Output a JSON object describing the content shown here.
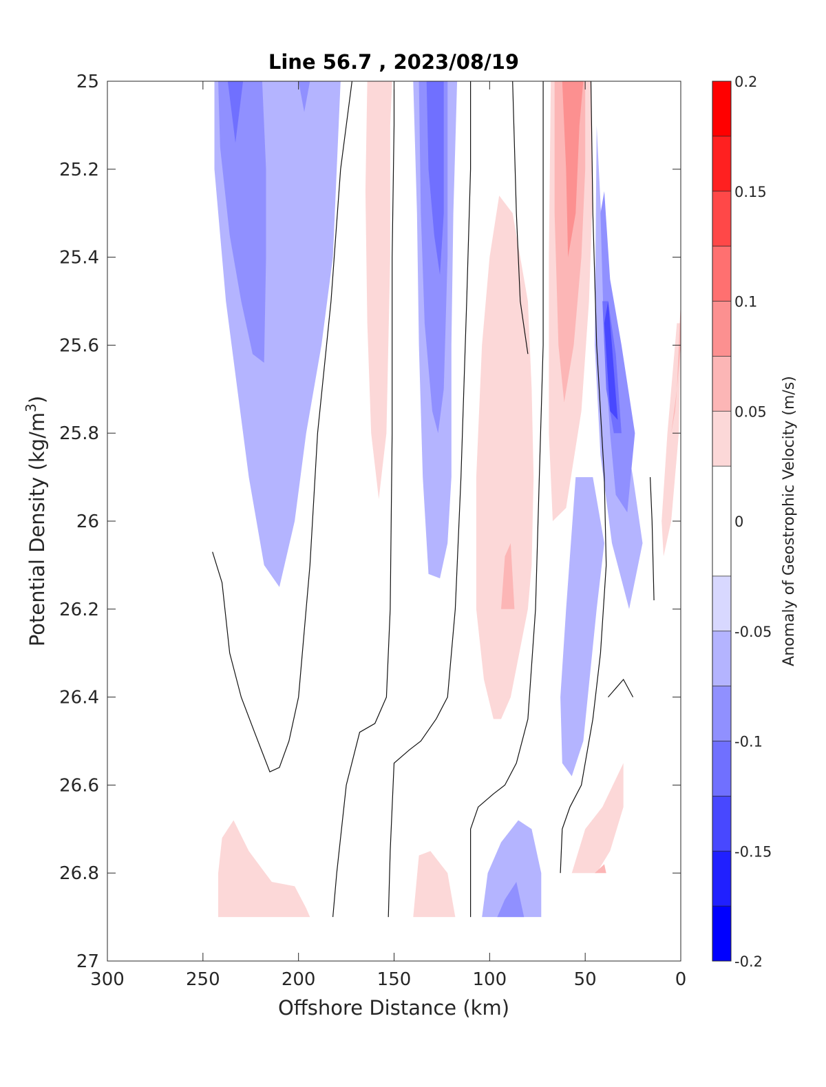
{
  "chart_data": {
    "type": "filled-contour",
    "title": "Line 56.7 , 2023/08/19",
    "xlabel": "Offshore Distance (km)",
    "ylabel_main": "Potential Density (kg/m",
    "ylabel_sup": "3",
    "ylabel_close": ")",
    "xlim": [
      300,
      0
    ],
    "x_reversed": true,
    "ylim": [
      25,
      27
    ],
    "y_reversed": true,
    "x_ticks": [
      {
        "value": 300,
        "label": "300"
      },
      {
        "value": 250,
        "label": "250"
      },
      {
        "value": 200,
        "label": "200"
      },
      {
        "value": 150,
        "label": "150"
      },
      {
        "value": 100,
        "label": "100"
      },
      {
        "value": 50,
        "label": "50"
      },
      {
        "value": 0,
        "label": "0"
      }
    ],
    "y_ticks": [
      {
        "value": 25,
        "label": "25"
      },
      {
        "value": 25.2,
        "label": "25.2"
      },
      {
        "value": 25.4,
        "label": "25.4"
      },
      {
        "value": 25.6,
        "label": "25.6"
      },
      {
        "value": 25.8,
        "label": "25.8"
      },
      {
        "value": 26,
        "label": "26"
      },
      {
        "value": 26.2,
        "label": "26.2"
      },
      {
        "value": 26.4,
        "label": "26.4"
      },
      {
        "value": 26.6,
        "label": "26.6"
      },
      {
        "value": 26.8,
        "label": "26.8"
      },
      {
        "value": 27,
        "label": "27"
      }
    ],
    "colorbar": {
      "label": "Anomaly of Geostrophic Velocity (m/s)",
      "range": [
        -0.2,
        0.2
      ],
      "levels": [
        -0.2,
        -0.175,
        -0.15,
        -0.125,
        -0.1,
        -0.075,
        -0.05,
        -0.025,
        0.025,
        0.05,
        0.075,
        0.1,
        0.125,
        0.15,
        0.175,
        0.2
      ],
      "colors": [
        "#0000ff",
        "#2020ff",
        "#4848ff",
        "#7070ff",
        "#9090ff",
        "#b4b4ff",
        "#d8d8ff",
        "#ffffff",
        "#fcd8d8",
        "#fcb6b6",
        "#fc9090",
        "#ff7070",
        "#ff4848",
        "#ff2020",
        "#ff0000"
      ],
      "ticks": [
        {
          "value": 0.2,
          "label": "0.2"
        },
        {
          "value": 0.15,
          "label": "0.15"
        },
        {
          "value": 0.1,
          "label": "0.1"
        },
        {
          "value": 0.05,
          "label": "0.05"
        },
        {
          "value": 0,
          "label": "0"
        },
        {
          "value": -0.05,
          "label": "-0.05"
        },
        {
          "value": -0.1,
          "label": "-0.1"
        },
        {
          "value": -0.15,
          "label": "-0.15"
        },
        {
          "value": -0.2,
          "label": "-0.2"
        }
      ]
    },
    "filled_regions": [
      {
        "level": -0.05,
        "points": [
          [
            244,
            25
          ],
          [
            244,
            25.2
          ],
          [
            238,
            25.5
          ],
          [
            232,
            25.7
          ],
          [
            226,
            25.9
          ],
          [
            218,
            26.1
          ],
          [
            210,
            26.15
          ],
          [
            202,
            26
          ],
          [
            196,
            25.8
          ],
          [
            188,
            25.6
          ],
          [
            182,
            25.4
          ],
          [
            180,
            25.2
          ],
          [
            178,
            25
          ]
        ]
      },
      {
        "level": -0.075,
        "points": [
          [
            242,
            25
          ],
          [
            241,
            25.15
          ],
          [
            236,
            25.35
          ],
          [
            230,
            25.5
          ],
          [
            224,
            25.62
          ],
          [
            218,
            25.64
          ],
          [
            217,
            25.4
          ],
          [
            217,
            25.2
          ],
          [
            219,
            25
          ]
        ]
      },
      {
        "level": -0.1,
        "points": [
          [
            237,
            25
          ],
          [
            235,
            25.07
          ],
          [
            233,
            25.14
          ],
          [
            231,
            25.07
          ],
          [
            229,
            25
          ]
        ]
      },
      {
        "level": -0.075,
        "points": [
          [
            200,
            25
          ],
          [
            197,
            25.07
          ],
          [
            194,
            25
          ]
        ]
      },
      {
        "level": -0.05,
        "points": [
          [
            140,
            25
          ],
          [
            138,
            25.3
          ],
          [
            137,
            25.6
          ],
          [
            135,
            25.9
          ],
          [
            132,
            26.12
          ],
          [
            126,
            26.13
          ],
          [
            122,
            26.05
          ],
          [
            120,
            25.9
          ],
          [
            120,
            25.6
          ],
          [
            119,
            25.3
          ],
          [
            117,
            25
          ]
        ]
      },
      {
        "level": -0.075,
        "points": [
          [
            137,
            25
          ],
          [
            136,
            25.3
          ],
          [
            134,
            25.55
          ],
          [
            130,
            25.75
          ],
          [
            127,
            25.8
          ],
          [
            124,
            25.7
          ],
          [
            122,
            25.4
          ],
          [
            122,
            25.2
          ],
          [
            122,
            25
          ]
        ]
      },
      {
        "level": -0.1,
        "points": [
          [
            133,
            25
          ],
          [
            132,
            25.2
          ],
          [
            129,
            25.35
          ],
          [
            126,
            25.44
          ],
          [
            124,
            25.3
          ],
          [
            124,
            25.1
          ],
          [
            124,
            25
          ]
        ]
      },
      {
        "level": 0.05,
        "points": [
          [
            164,
            25
          ],
          [
            165,
            25.25
          ],
          [
            164,
            25.55
          ],
          [
            162,
            25.8
          ],
          [
            158,
            25.95
          ],
          [
            154,
            25.8
          ],
          [
            152,
            25.4
          ],
          [
            152,
            25.1
          ],
          [
            151,
            25
          ]
        ]
      },
      {
        "level": 0.05,
        "points": [
          [
            104,
            25.6
          ],
          [
            107,
            25.9
          ],
          [
            107,
            26.2
          ],
          [
            103,
            26.36
          ],
          [
            98,
            26.45
          ],
          [
            94,
            26.45
          ],
          [
            89,
            26.4
          ],
          [
            80,
            26.2
          ],
          [
            78,
            26.1
          ],
          [
            77,
            25.9
          ],
          [
            78,
            25.7
          ],
          [
            80,
            25.5
          ],
          [
            88,
            25.3
          ],
          [
            95,
            25.26
          ],
          [
            100,
            25.4
          ]
        ]
      },
      {
        "level": 0.075,
        "points": [
          [
            92,
            26.08
          ],
          [
            94,
            26.2
          ],
          [
            87,
            26.2
          ],
          [
            89,
            26.05
          ]
        ]
      },
      {
        "level": 0.05,
        "points": [
          [
            68,
            25
          ],
          [
            69,
            25.4
          ],
          [
            69,
            25.8
          ],
          [
            67,
            26
          ],
          [
            60,
            25.97
          ],
          [
            52,
            25.75
          ],
          [
            48,
            25.5
          ],
          [
            46,
            25.25
          ],
          [
            47,
            25
          ]
        ]
      },
      {
        "level": 0.075,
        "points": [
          [
            66,
            25
          ],
          [
            66,
            25.3
          ],
          [
            64,
            25.6
          ],
          [
            61,
            25.73
          ],
          [
            56,
            25.6
          ],
          [
            52,
            25.4
          ],
          [
            50,
            25.2
          ],
          [
            50,
            25
          ]
        ]
      },
      {
        "level": 0.1,
        "points": [
          [
            62,
            25
          ],
          [
            60,
            25.2
          ],
          [
            59,
            25.4
          ],
          [
            55,
            25.3
          ],
          [
            53,
            25.1
          ],
          [
            51,
            25
          ]
        ]
      },
      {
        "level": -0.05,
        "points": [
          [
            45,
            25.6
          ],
          [
            42,
            25.85
          ],
          [
            36,
            26.05
          ],
          [
            30,
            26.15
          ],
          [
            27,
            26.2
          ],
          [
            20,
            26.05
          ],
          [
            25,
            25.9
          ],
          [
            33,
            25.7
          ],
          [
            40,
            25.45
          ],
          [
            44,
            25.1
          ]
        ]
      },
      {
        "level": -0.05,
        "points": [
          [
            55,
            25.9
          ],
          [
            60,
            26.2
          ],
          [
            63,
            26.4
          ],
          [
            62,
            26.55
          ],
          [
            57,
            26.58
          ],
          [
            51,
            26.5
          ],
          [
            44,
            26.2
          ],
          [
            40,
            26.05
          ],
          [
            46,
            25.9
          ]
        ]
      },
      {
        "level": -0.075,
        "points": [
          [
            42,
            25.3
          ],
          [
            40,
            25.6
          ],
          [
            37,
            25.8
          ],
          [
            34,
            25.94
          ],
          [
            28,
            25.98
          ],
          [
            24,
            25.8
          ],
          [
            31,
            25.6
          ],
          [
            37,
            25.45
          ],
          [
            40,
            25.25
          ]
        ]
      },
      {
        "level": -0.1,
        "points": [
          [
            41,
            25.5
          ],
          [
            39,
            25.7
          ],
          [
            35,
            25.8
          ],
          [
            31,
            25.8
          ],
          [
            34,
            25.62
          ],
          [
            38,
            25.5
          ]
        ]
      },
      {
        "level": -0.125,
        "points": [
          [
            40,
            25.55
          ],
          [
            37,
            25.75
          ],
          [
            33,
            25.77
          ],
          [
            36,
            25.6
          ],
          [
            38,
            25.5
          ]
        ]
      },
      {
        "level": 0.05,
        "points": [
          [
            2,
            25.55
          ],
          [
            7,
            25.8
          ],
          [
            10,
            26
          ],
          [
            9,
            26.08
          ],
          [
            5,
            26
          ],
          [
            1,
            25.8
          ],
          [
            0,
            25.55
          ]
        ]
      },
      {
        "level": 0.075,
        "points": [
          [
            0,
            25.5
          ],
          [
            2,
            25.7
          ],
          [
            5,
            25.8
          ],
          [
            3,
            25.75
          ],
          [
            0,
            25.6
          ]
        ]
      },
      {
        "level": 0.05,
        "points": [
          [
            242,
            26.8
          ],
          [
            240,
            26.72
          ],
          [
            234,
            26.68
          ],
          [
            226,
            26.75
          ],
          [
            214,
            26.82
          ],
          [
            202,
            26.83
          ],
          [
            196,
            26.88
          ],
          [
            194,
            26.9
          ],
          [
            242,
            26.9
          ]
        ]
      },
      {
        "level": 0.05,
        "points": [
          [
            140,
            26.9
          ],
          [
            137,
            26.76
          ],
          [
            131,
            26.75
          ],
          [
            122,
            26.8
          ],
          [
            118,
            26.9
          ]
        ]
      },
      {
        "level": -0.05,
        "points": [
          [
            104,
            26.9
          ],
          [
            101,
            26.8
          ],
          [
            94,
            26.73
          ],
          [
            85,
            26.68
          ],
          [
            78,
            26.7
          ],
          [
            73,
            26.8
          ],
          [
            73,
            26.9
          ]
        ]
      },
      {
        "level": -0.075,
        "points": [
          [
            96,
            26.9
          ],
          [
            92,
            26.86
          ],
          [
            86,
            26.82
          ],
          [
            82,
            26.9
          ]
        ]
      },
      {
        "level": 0.05,
        "points": [
          [
            57,
            26.8
          ],
          [
            50,
            26.7
          ],
          [
            41,
            26.65
          ],
          [
            30,
            26.55
          ],
          [
            30,
            26.65
          ],
          [
            37,
            26.75
          ],
          [
            44,
            26.8
          ]
        ]
      },
      {
        "level": 0.075,
        "points": [
          [
            45,
            26.8
          ],
          [
            40,
            26.78
          ],
          [
            39,
            26.8
          ]
        ]
      }
    ],
    "zero_contours": [
      [
        [
          245,
          26.07
        ],
        [
          240,
          26.14
        ],
        [
          236,
          26.3
        ],
        [
          230,
          26.4
        ],
        [
          223,
          26.48
        ],
        [
          215,
          26.57
        ],
        [
          210,
          26.56
        ],
        [
          205,
          26.5
        ],
        [
          200,
          26.4
        ],
        [
          194,
          26.1
        ],
        [
          190,
          25.8
        ],
        [
          183,
          25.5
        ],
        [
          178,
          25.2
        ],
        [
          172,
          25
        ]
      ],
      [
        [
          182,
          26.9
        ],
        [
          180,
          26.8
        ],
        [
          175,
          26.6
        ],
        [
          168,
          26.48
        ],
        [
          160,
          26.46
        ],
        [
          154,
          26.4
        ],
        [
          152,
          26.2
        ],
        [
          151,
          25.8
        ],
        [
          151,
          25.4
        ],
        [
          150,
          25.1
        ],
        [
          150,
          25
        ]
      ],
      [
        [
          153,
          26.9
        ],
        [
          152,
          26.75
        ],
        [
          150,
          26.55
        ],
        [
          142,
          26.52
        ],
        [
          136,
          26.5
        ],
        [
          128,
          26.45
        ],
        [
          122,
          26.4
        ],
        [
          118,
          26.2
        ],
        [
          115,
          25.9
        ],
        [
          112,
          25.5
        ],
        [
          110,
          25.2
        ],
        [
          110,
          25
        ]
      ],
      [
        [
          110,
          26.9
        ],
        [
          110,
          26.7
        ],
        [
          106,
          26.65
        ],
        [
          98,
          26.62
        ],
        [
          92,
          26.6
        ],
        [
          86,
          26.55
        ],
        [
          80,
          26.45
        ],
        [
          76,
          26.2
        ],
        [
          74,
          25.9
        ],
        [
          72,
          25.6
        ],
        [
          72,
          25.2
        ],
        [
          72,
          25
        ]
      ],
      [
        [
          80,
          25.62
        ],
        [
          84,
          25.5
        ],
        [
          86,
          25.3
        ],
        [
          88,
          25
        ]
      ],
      [
        [
          63,
          26.8
        ],
        [
          62,
          26.7
        ],
        [
          58,
          26.65
        ],
        [
          52,
          26.6
        ],
        [
          48,
          26.5
        ],
        [
          46,
          26.45
        ],
        [
          42,
          26.3
        ],
        [
          39,
          26.1
        ],
        [
          40,
          25.9
        ],
        [
          44,
          25.6
        ],
        [
          46,
          25.3
        ],
        [
          47,
          25
        ]
      ],
      [
        [
          25,
          26.4
        ],
        [
          30,
          26.36
        ],
        [
          34,
          26.38
        ],
        [
          38,
          26.4
        ]
      ],
      [
        [
          14,
          26.18
        ],
        [
          15,
          26
        ],
        [
          16,
          25.9
        ]
      ]
    ]
  }
}
